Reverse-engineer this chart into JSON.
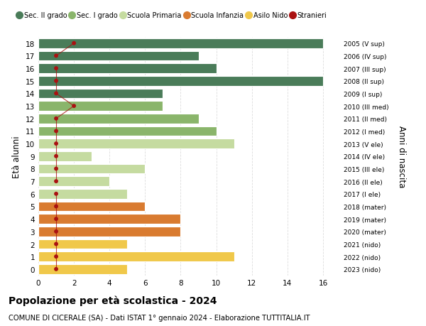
{
  "ages": [
    18,
    17,
    16,
    15,
    14,
    13,
    12,
    11,
    10,
    9,
    8,
    7,
    6,
    5,
    4,
    3,
    2,
    1,
    0
  ],
  "years": [
    "2005 (V sup)",
    "2006 (IV sup)",
    "2007 (III sup)",
    "2008 (II sup)",
    "2009 (I sup)",
    "2010 (III med)",
    "2011 (II med)",
    "2012 (I med)",
    "2013 (V ele)",
    "2014 (IV ele)",
    "2015 (III ele)",
    "2016 (II ele)",
    "2017 (I ele)",
    "2018 (mater)",
    "2019 (mater)",
    "2020 (mater)",
    "2021 (nido)",
    "2022 (nido)",
    "2023 (nido)"
  ],
  "bar_values": [
    16,
    9,
    10,
    16,
    7,
    7,
    9,
    10,
    11,
    3,
    6,
    4,
    5,
    6,
    8,
    8,
    5,
    11,
    5
  ],
  "bar_colors": [
    "#4a7c59",
    "#4a7c59",
    "#4a7c59",
    "#4a7c59",
    "#4a7c59",
    "#8ab56b",
    "#8ab56b",
    "#8ab56b",
    "#c5dba0",
    "#c5dba0",
    "#c5dba0",
    "#c5dba0",
    "#c5dba0",
    "#d97b30",
    "#d97b30",
    "#d97b30",
    "#f0c84a",
    "#f0c84a",
    "#f0c84a"
  ],
  "stranieri_x": [
    2,
    1,
    1,
    1,
    1,
    2,
    1,
    1,
    1,
    1,
    1,
    1,
    1,
    1,
    1,
    1,
    1,
    1,
    1
  ],
  "stranieri_connected": [
    true,
    true,
    false,
    true,
    true,
    true,
    true,
    true,
    true,
    true,
    true,
    true,
    false,
    true,
    true,
    true,
    true,
    true,
    true
  ],
  "legend_labels": [
    "Sec. II grado",
    "Sec. I grado",
    "Scuola Primaria",
    "Scuola Infanzia",
    "Asilo Nido",
    "Stranieri"
  ],
  "legend_colors": [
    "#4a7c59",
    "#8ab56b",
    "#c5dba0",
    "#d97b30",
    "#f0c84a",
    "#cc0000"
  ],
  "stranieri_color": "#aa1111",
  "title": "Popolazione per età scolastica - 2024",
  "subtitle": "COMUNE DI CICERALE (SA) - Dati ISTAT 1° gennaio 2024 - Elaborazione TUTTITALIA.IT",
  "ylabel": "Età alunni",
  "ylabel2": "Anni di nascita",
  "xlim": [
    0,
    17
  ],
  "xticks": [
    0,
    2,
    4,
    6,
    8,
    10,
    12,
    14,
    16
  ],
  "background_color": "#ffffff",
  "grid_color": "#dddddd",
  "bar_edge_color": "#ffffff",
  "bar_linewidth": 0.8
}
